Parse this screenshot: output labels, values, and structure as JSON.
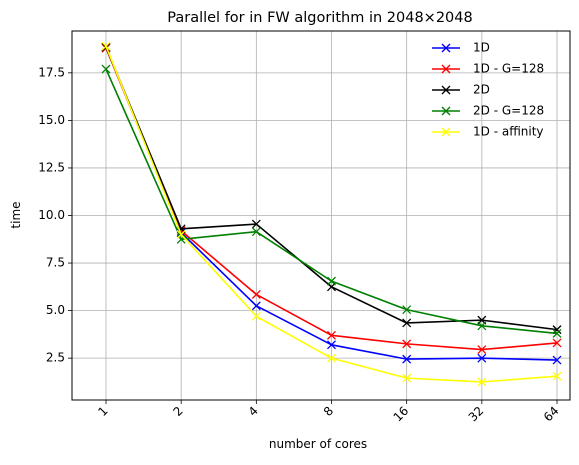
{
  "chart_data": {
    "type": "line",
    "title": "Parallel for in FW algorithm in 2048×2048",
    "xlabel": "number of cores",
    "ylabel": "time",
    "categories": [
      "1",
      "2",
      "4",
      "8",
      "16",
      "32",
      "64"
    ],
    "ylim": [
      0.3,
      19.7
    ],
    "yticks": [
      2.5,
      5.0,
      7.5,
      10.0,
      12.5,
      15.0,
      17.5
    ],
    "ytick_labels": [
      "2.5",
      "5.0",
      "7.5",
      "10.0",
      "12.5",
      "15.0",
      "17.5"
    ],
    "grid": true,
    "legend_position": "top-right",
    "marker": "x",
    "series": [
      {
        "name": "1D",
        "color": "#0000ff",
        "values": [
          18.85,
          9.1,
          5.25,
          3.2,
          2.45,
          2.5,
          2.4
        ]
      },
      {
        "name": "1D - G=128",
        "color": "#ff0000",
        "values": [
          18.8,
          9.2,
          5.85,
          3.7,
          3.25,
          2.95,
          3.3
        ]
      },
      {
        "name": "2D",
        "color": "#000000",
        "values": [
          18.85,
          9.3,
          9.55,
          6.25,
          4.35,
          4.5,
          4.0
        ]
      },
      {
        "name": "2D - G=128",
        "color": "#008000",
        "values": [
          17.7,
          8.75,
          9.15,
          6.55,
          5.05,
          4.2,
          3.8
        ]
      },
      {
        "name": "1D - affinity",
        "color": "#ffff00",
        "values": [
          18.9,
          9.0,
          4.7,
          2.5,
          1.45,
          1.25,
          1.55
        ]
      }
    ]
  }
}
